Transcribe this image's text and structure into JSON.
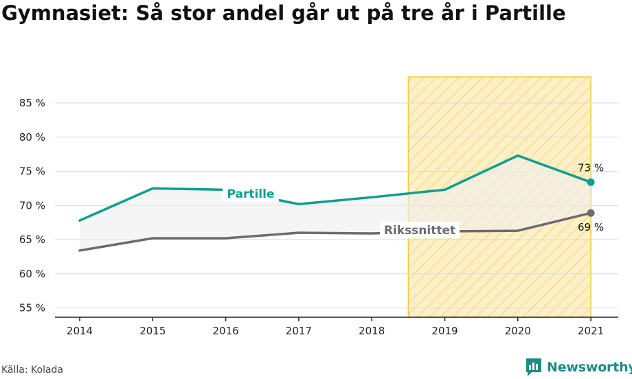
{
  "title": "Gymnasiet: Så stor andel går ut på tre år i Partille",
  "source": "Källa: Kolada",
  "brand": {
    "name": "Newsworthy",
    "icon": "newsworthy-logo-icon"
  },
  "colors": {
    "partille": "#0f9e8f",
    "riks": "#6d6a72",
    "highlight_fill": "#fdf0c8",
    "highlight_stroke": "#f5c842",
    "band": "#eeeeee"
  },
  "chart_data": {
    "type": "line",
    "title": "Gymnasiet: Så stor andel går ut på tre år i Partille",
    "xlabel": "",
    "ylabel": "",
    "x": [
      2014,
      2015,
      2016,
      2017,
      2018,
      2019,
      2020,
      2021
    ],
    "xtick_labels": [
      "2014",
      "2015",
      "2016",
      "2017",
      "2018",
      "2019",
      "2020",
      "2021"
    ],
    "ylim": [
      54,
      89
    ],
    "yticks": [
      55,
      60,
      65,
      70,
      75,
      80,
      85
    ],
    "ytick_labels": [
      "55 %",
      "60 %",
      "65 %",
      "70 %",
      "75 %",
      "80 %",
      "85 %"
    ],
    "grid": true,
    "highlight_range": [
      2018.5,
      2021
    ],
    "series": [
      {
        "name": "Partille",
        "key": "partille",
        "values": [
          67.8,
          72.5,
          72.3,
          70.2,
          71.2,
          72.3,
          77.3,
          73.4
        ],
        "end_label": "73 %"
      },
      {
        "name": "Rikssnittet",
        "key": "riks",
        "values": [
          63.4,
          65.2,
          65.2,
          66.0,
          65.9,
          66.2,
          66.3,
          68.9
        ],
        "end_label": "69 %"
      }
    ]
  }
}
